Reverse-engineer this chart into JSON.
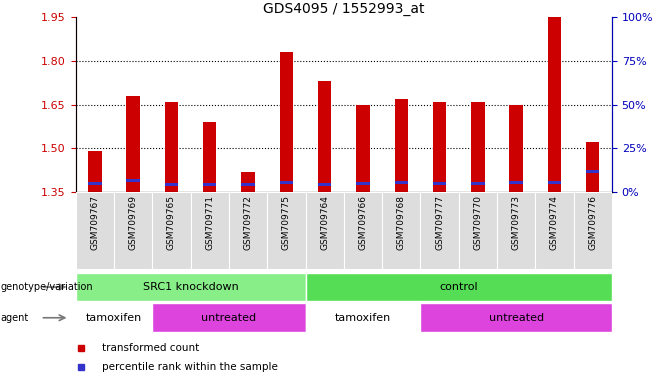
{
  "title": "GDS4095 / 1552993_at",
  "samples": [
    "GSM709767",
    "GSM709769",
    "GSM709765",
    "GSM709771",
    "GSM709772",
    "GSM709775",
    "GSM709764",
    "GSM709766",
    "GSM709768",
    "GSM709777",
    "GSM709770",
    "GSM709773",
    "GSM709774",
    "GSM709776"
  ],
  "red_values": [
    1.49,
    1.68,
    1.66,
    1.59,
    1.42,
    1.83,
    1.73,
    1.65,
    1.67,
    1.66,
    1.66,
    1.65,
    1.95,
    1.52
  ],
  "blue_values": [
    1.375,
    1.385,
    1.372,
    1.372,
    1.37,
    1.378,
    1.372,
    1.373,
    1.378,
    1.373,
    1.373,
    1.378,
    1.378,
    1.415
  ],
  "blue_heights": [
    0.01,
    0.01,
    0.01,
    0.01,
    0.01,
    0.01,
    0.01,
    0.01,
    0.01,
    0.01,
    0.01,
    0.01,
    0.01,
    0.01
  ],
  "base": 1.35,
  "ylim_left": [
    1.35,
    1.95
  ],
  "yticks_left": [
    1.35,
    1.5,
    1.65,
    1.8,
    1.95
  ],
  "yticks_right": [
    0,
    25,
    50,
    75,
    100
  ],
  "bar_color_red": "#cc0000",
  "bar_color_blue": "#3333cc",
  "bar_width": 0.35,
  "grid_color": "#000000",
  "bg_color": "#ffffff",
  "plot_bg": "#ffffff",
  "genotype_groups": [
    {
      "label": "SRC1 knockdown",
      "start": 0,
      "end": 5,
      "color": "#88ee88"
    },
    {
      "label": "control",
      "start": 6,
      "end": 13,
      "color": "#55dd55"
    }
  ],
  "agent_groups": [
    {
      "label": "tamoxifen",
      "start": 0,
      "end": 1,
      "color": "#ffffff"
    },
    {
      "label": "untreated",
      "start": 2,
      "end": 5,
      "color": "#dd44dd"
    },
    {
      "label": "tamoxifen",
      "start": 6,
      "end": 8,
      "color": "#ffffff"
    },
    {
      "label": "untreated",
      "start": 9,
      "end": 13,
      "color": "#dd44dd"
    }
  ],
  "legend_items": [
    {
      "label": "transformed count",
      "color": "#cc0000"
    },
    {
      "label": "percentile rank within the sample",
      "color": "#3333cc"
    }
  ],
  "genotype_label": "genotype/variation",
  "agent_label": "agent",
  "left_axis_color": "#cc0000",
  "right_axis_color": "#0000bb",
  "xticklabel_bg": "#dddddd"
}
